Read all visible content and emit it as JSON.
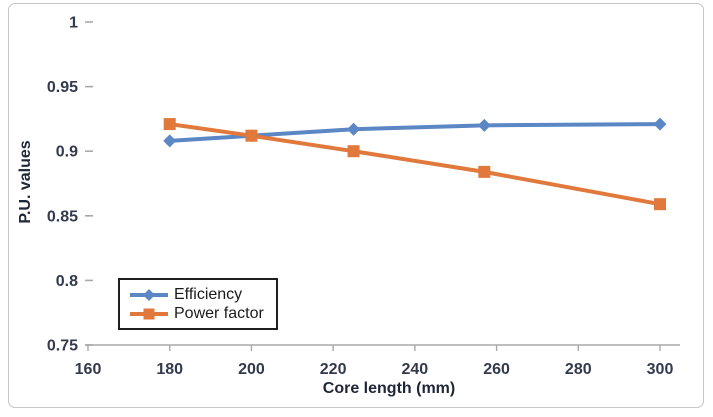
{
  "figure": {
    "background": "#ffffff",
    "border_color": "#c6c6c6"
  },
  "chart_data": {
    "type": "line",
    "title": "",
    "xlabel": "Core length (mm)",
    "ylabel": "P.U. values",
    "x": [
      180,
      200,
      225,
      257,
      300
    ],
    "series": [
      {
        "name": "Efficiency",
        "marker": "diamond",
        "color": "#5b87c5",
        "values": [
          0.908,
          0.912,
          0.917,
          0.92,
          0.921
        ]
      },
      {
        "name": "Power factor",
        "marker": "square",
        "color": "#e0793b",
        "values": [
          0.921,
          0.912,
          0.9,
          0.884,
          0.859
        ]
      }
    ],
    "xlim": [
      160,
      300
    ],
    "ylim": [
      0.75,
      1.0
    ],
    "xticks": [
      160,
      180,
      200,
      220,
      240,
      260,
      280,
      300
    ],
    "yticks": [
      0.75,
      0.8,
      0.85,
      0.9,
      0.95,
      1
    ],
    "ytick_labels": [
      "0.75",
      "0.8",
      "0.85",
      "0.9",
      "0.95",
      "1"
    ],
    "grid": false,
    "legend_position": "inside-bottom-left"
  },
  "colors": {
    "axis_line": "#a8a8a8",
    "tick_label": "#333a4e",
    "axis_title": "#1f2638",
    "legend_text": "#1c1c1c",
    "legend_border": "#1f1f1f"
  }
}
